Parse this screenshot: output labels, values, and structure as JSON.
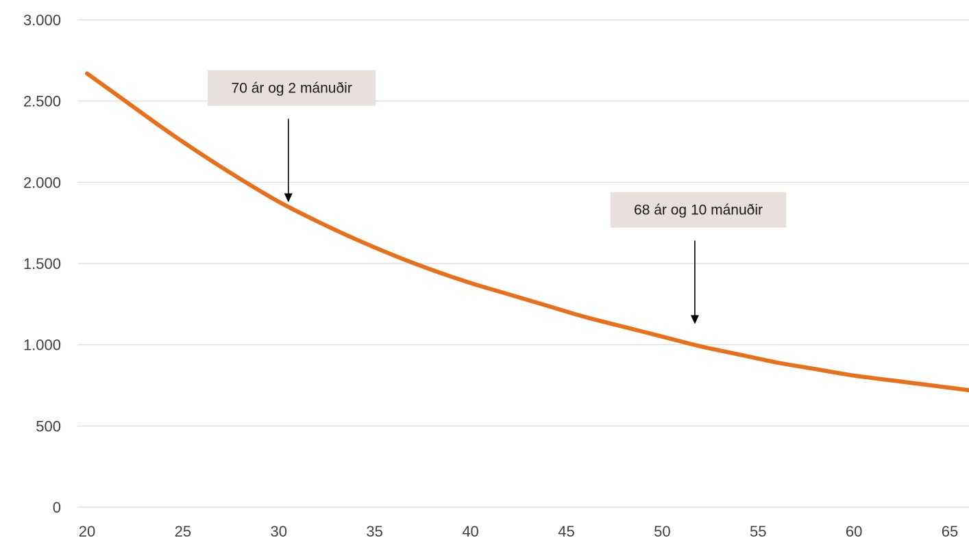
{
  "chart_data": {
    "type": "line",
    "title": "",
    "xlabel": "",
    "ylabel": "",
    "xlim": [
      20,
      66
    ],
    "ylim": [
      0,
      3000
    ],
    "x_ticks": [
      20,
      25,
      30,
      35,
      40,
      45,
      50,
      55,
      60,
      65
    ],
    "y_ticks": [
      0,
      500,
      1000,
      1500,
      2000,
      2500,
      3000
    ],
    "y_tick_labels": [
      "0",
      "500",
      "1.000",
      "1.500",
      "2.000",
      "2.500",
      "3.000"
    ],
    "grid": "horizontal",
    "series": [
      {
        "color": "#e8701a",
        "x": [
          20,
          22,
          24,
          26,
          28,
          30,
          32,
          34,
          36,
          38,
          40,
          42,
          44,
          46,
          48,
          50,
          52,
          54,
          56,
          58,
          60,
          62,
          64,
          66
        ],
        "y": [
          2670,
          2500,
          2330,
          2170,
          2020,
          1880,
          1760,
          1650,
          1550,
          1460,
          1380,
          1310,
          1240,
          1170,
          1110,
          1050,
          990,
          940,
          890,
          850,
          810,
          780,
          750,
          720
        ]
      }
    ],
    "annotations": [
      {
        "text": "70 ár og 2 mánuðir",
        "x": 30.5,
        "y": 1860
      },
      {
        "text": "68 ár og 10 mánuðir",
        "x": 51.7,
        "y": 1110
      }
    ]
  }
}
